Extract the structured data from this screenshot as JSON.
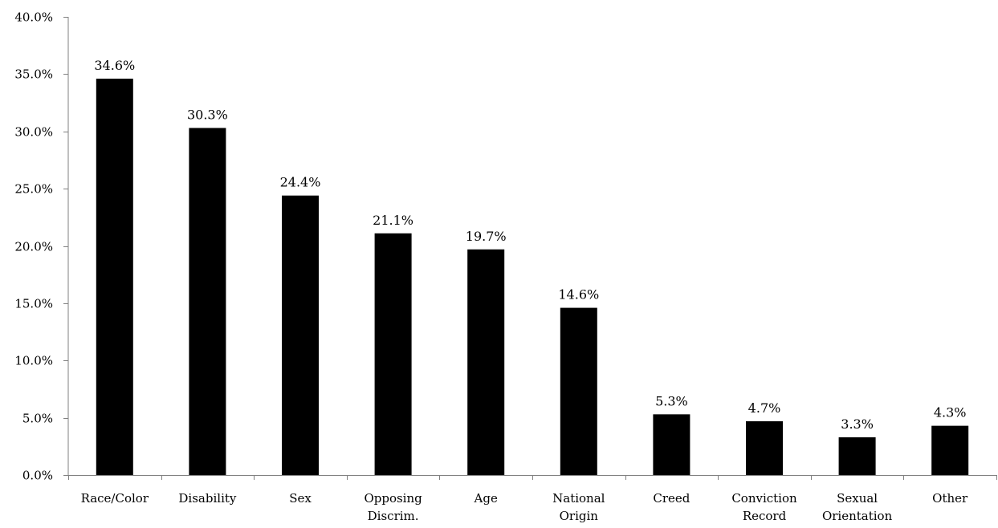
{
  "chart_data": {
    "type": "bar",
    "title": "",
    "xlabel": "",
    "ylabel": "",
    "categories": [
      [
        "Race/Color"
      ],
      [
        "Disability"
      ],
      [
        "Sex"
      ],
      [
        "Opposing",
        "Discrim."
      ],
      [
        "Age"
      ],
      [
        "National",
        "Origin"
      ],
      [
        "Creed"
      ],
      [
        "Conviction",
        "Record"
      ],
      [
        "Sexual",
        "Orientation"
      ],
      [
        "Other"
      ]
    ],
    "values": [
      34.6,
      30.3,
      24.4,
      21.1,
      19.7,
      14.6,
      5.3,
      4.7,
      3.3,
      4.3
    ],
    "value_labels": [
      "34.6%",
      "30.3%",
      "24.4%",
      "21.1%",
      "19.7%",
      "14.6%",
      "5.3%",
      "4.7%",
      "3.3%",
      "4.3%"
    ],
    "yticks": [
      0,
      5,
      10,
      15,
      20,
      25,
      30,
      35,
      40
    ],
    "ytick_labels": [
      "0.0%",
      "5.0%",
      "10.0%",
      "15.0%",
      "20.0%",
      "25.0%",
      "30.0%",
      "35.0%",
      "40.0%"
    ],
    "ylim": [
      0,
      40
    ],
    "grid": false,
    "legend": "none",
    "bar_color": "#000000",
    "axis_color": "#808080"
  }
}
